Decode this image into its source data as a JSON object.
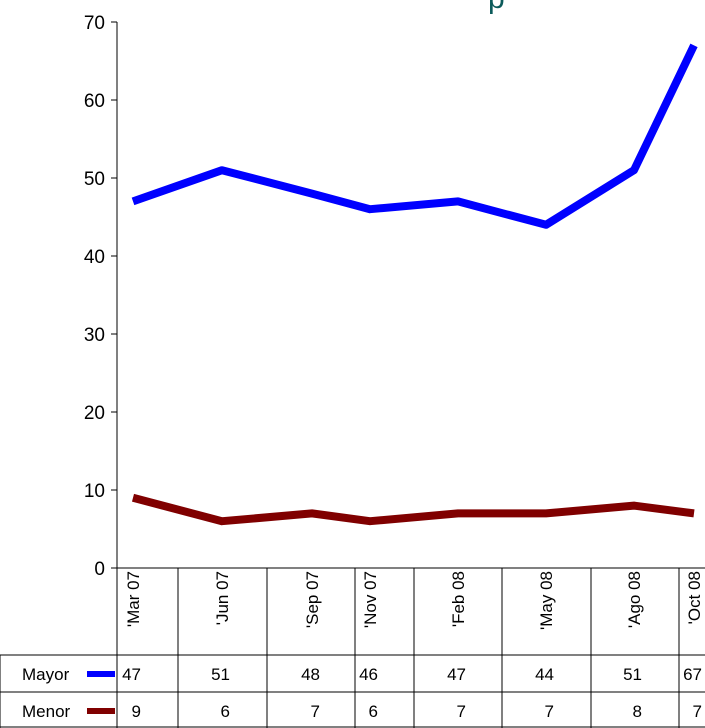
{
  "chart_data": {
    "type": "line",
    "title": "p",
    "categories": [
      "'Mar 07",
      "'Jun 07",
      "'Sep 07",
      "'Nov 07",
      "'Feb 08",
      "'May 08",
      "'Ago 08",
      "'Oct 08"
    ],
    "ylim": [
      0,
      70
    ],
    "yticks": [
      0,
      10,
      20,
      30,
      40,
      50,
      60,
      70
    ],
    "grid": false,
    "legend": "data-table",
    "series": [
      {
        "name": "Mayor",
        "color": "#0000ff",
        "values": [
          47,
          51,
          48,
          46,
          47,
          44,
          51,
          67
        ]
      },
      {
        "name": "Menor",
        "color": "#800000",
        "values": [
          9,
          6,
          7,
          6,
          7,
          7,
          8,
          7
        ]
      }
    ]
  }
}
